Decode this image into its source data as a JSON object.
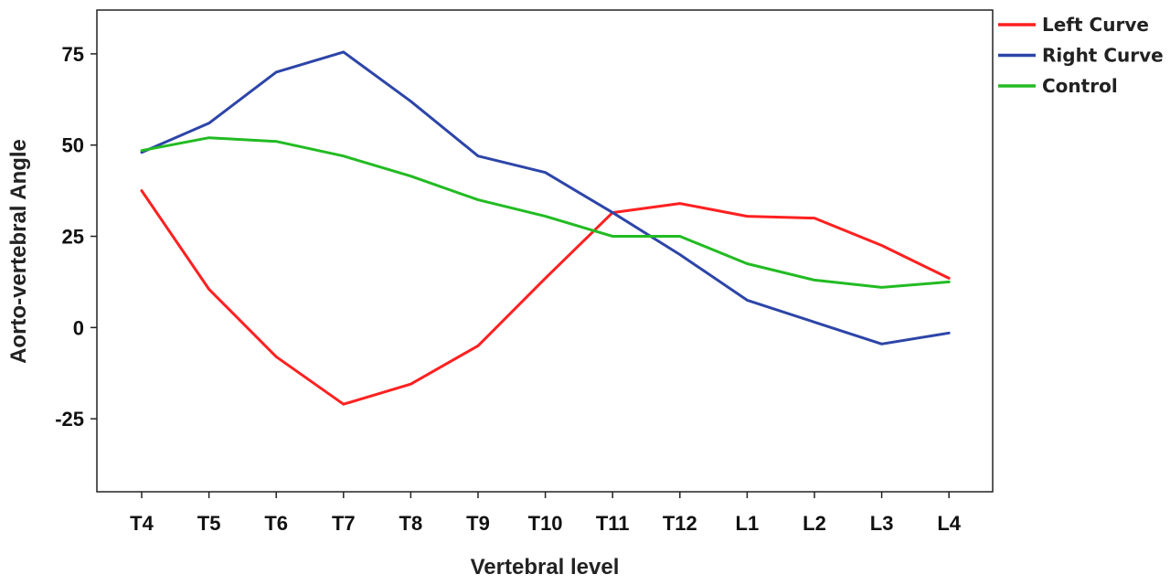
{
  "chart_data": {
    "type": "line",
    "xlabel": "Vertebral level",
    "ylabel": "Aorto-vertebral Angle",
    "categories": [
      "T4",
      "T5",
      "T6",
      "T7",
      "T8",
      "T9",
      "T10",
      "T11",
      "T12",
      "L1",
      "L2",
      "L3",
      "L4"
    ],
    "ylim": [
      -45,
      87
    ],
    "yticks": [
      75,
      50,
      25,
      0,
      -25
    ],
    "ytick_labels": [
      "75",
      "50",
      "25",
      "0",
      "-25"
    ],
    "grid": false,
    "legend_position": "top-right, outside plot",
    "series": [
      {
        "name": "Left Curve",
        "color": "#ff2020",
        "values": [
          37.5,
          10.5,
          -8,
          -21,
          -15.5,
          -5,
          13.5,
          31.5,
          34,
          30.5,
          30,
          22.5,
          13.5
        ]
      },
      {
        "name": "Right Curve",
        "color": "#2d45a8",
        "values": [
          48,
          56,
          70,
          75.5,
          62,
          47,
          42.5,
          31.5,
          20,
          7.5,
          1.5,
          -4.5,
          -1.5
        ]
      },
      {
        "name": "Control",
        "color": "#22bb22",
        "values": [
          48.5,
          52,
          51,
          47,
          41.5,
          35,
          30.5,
          25,
          25,
          17.5,
          13,
          11,
          12.5
        ]
      }
    ]
  }
}
